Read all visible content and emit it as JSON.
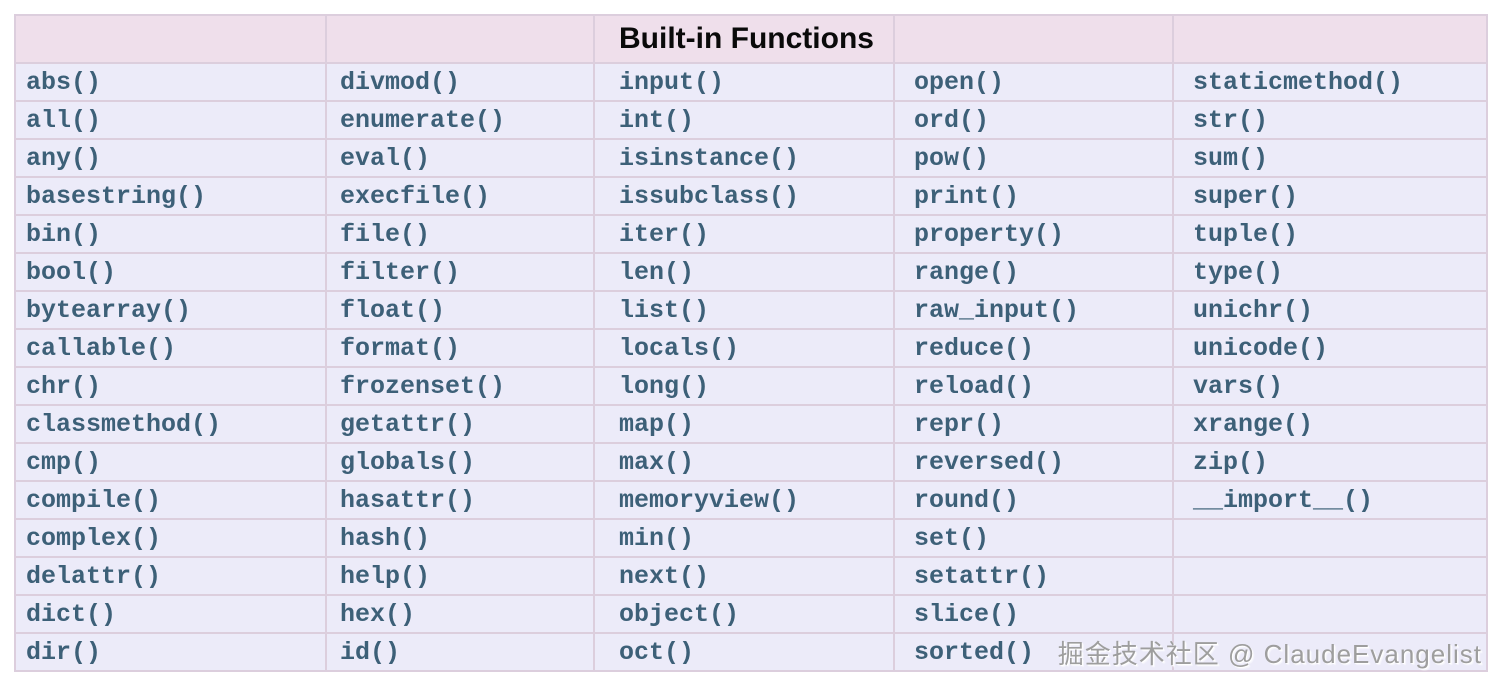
{
  "table": {
    "title": "Built-in Functions",
    "rows": 16,
    "columns": [
      [
        "abs()",
        "all()",
        "any()",
        "basestring()",
        "bin()",
        "bool()",
        "bytearray()",
        "callable()",
        "chr()",
        "classmethod()",
        "cmp()",
        "compile()",
        "complex()",
        "delattr()",
        "dict()",
        "dir()"
      ],
      [
        "divmod()",
        "enumerate()",
        "eval()",
        "execfile()",
        "file()",
        "filter()",
        "float()",
        "format()",
        "frozenset()",
        "getattr()",
        "globals()",
        "hasattr()",
        "hash()",
        "help()",
        "hex()",
        "id()"
      ],
      [
        "input()",
        "int()",
        "isinstance()",
        "issubclass()",
        "iter()",
        "len()",
        "list()",
        "locals()",
        "long()",
        "map()",
        "max()",
        "memoryview()",
        "min()",
        "next()",
        "object()",
        "oct()"
      ],
      [
        "open()",
        "ord()",
        "pow()",
        "print()",
        "property()",
        "range()",
        "raw_input()",
        "reduce()",
        "reload()",
        "repr()",
        "reversed()",
        "round()",
        "set()",
        "setattr()",
        "slice()",
        "sorted()"
      ],
      [
        "staticmethod()",
        "str()",
        "sum()",
        "super()",
        "tuple()",
        "type()",
        "unichr()",
        "unicode()",
        "vars()",
        "xrange()",
        "zip()",
        "__import__()"
      ]
    ]
  },
  "watermark": {
    "text": "掘金技术社区 @ ClaudeEvangelist"
  },
  "colors": {
    "header_bg": "#efdfeb",
    "row_bg": "#ecebf9",
    "border": "#dccedd",
    "cell_text": "#3d6078",
    "title_text": "#0a0a0a",
    "watermark_text": "#9e9e9e"
  }
}
